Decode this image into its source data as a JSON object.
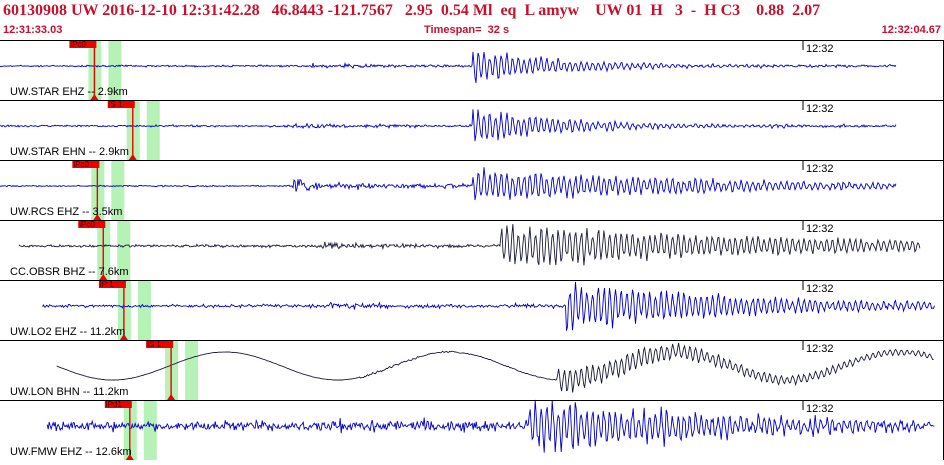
{
  "header": {
    "title": "60130908 UW 2016-12-10 12:31:42.28   46.8443 -121.7567   2.95  0.54 Ml  eq  L amyw    UW 01  H   3  -  H C3    0.88  2.07",
    "start_time": "12:31:33.03",
    "timespan": "Timespan=  32 s",
    "end_time": "12:32:04.67"
  },
  "colors": {
    "header_text": "#c8102e",
    "trace_blue": "#0000cc",
    "trace_dark": "#1a1a3a",
    "pick_red": "#ee0000",
    "window_green": "#b6f2b6",
    "divider": "#000000"
  },
  "channels": [
    {
      "label": "UW.STAR EHZ -- 2.9km",
      "time_label": "12:32",
      "trace_color": "blue",
      "picks": [
        {
          "label": "iPc0",
          "time": 3.2
        }
      ]
    },
    {
      "label": "UW.STAR EHN -- 2.9km",
      "time_label": "12:32",
      "trace_color": "blue",
      "picks": [
        {
          "label": "iS 1",
          "time": 4.5
        }
      ]
    },
    {
      "label": "UW.RCS EHZ -- 3.5km",
      "time_label": "12:32",
      "trace_color": "blue",
      "picks": [
        {
          "label": "iPc0",
          "time": 3.3
        }
      ]
    },
    {
      "label": "CC.OBSR BHZ -- 7.6km",
      "time_label": "12:32",
      "trace_color": "dark",
      "picks": [
        {
          "label": "iPc0",
          "time": 3.5
        }
      ]
    },
    {
      "label": "UW.LO2 EHZ -- 11.2km",
      "time_label": "12:32",
      "trace_color": "blue",
      "picks": [
        {
          "label": "iP 1",
          "time": 4.2
        }
      ]
    },
    {
      "label": "UW.LON BHN -- 11.2km",
      "time_label": "12:32",
      "trace_color": "dark",
      "picks": [
        {
          "label": "iS 1",
          "time": 5.8
        }
      ]
    },
    {
      "label": "UW.FMW EHZ -- 12.6km",
      "time_label": "12:32",
      "trace_color": "blue",
      "picks": [
        {
          "label": "iPd1",
          "time": 4.4
        }
      ]
    }
  ]
}
